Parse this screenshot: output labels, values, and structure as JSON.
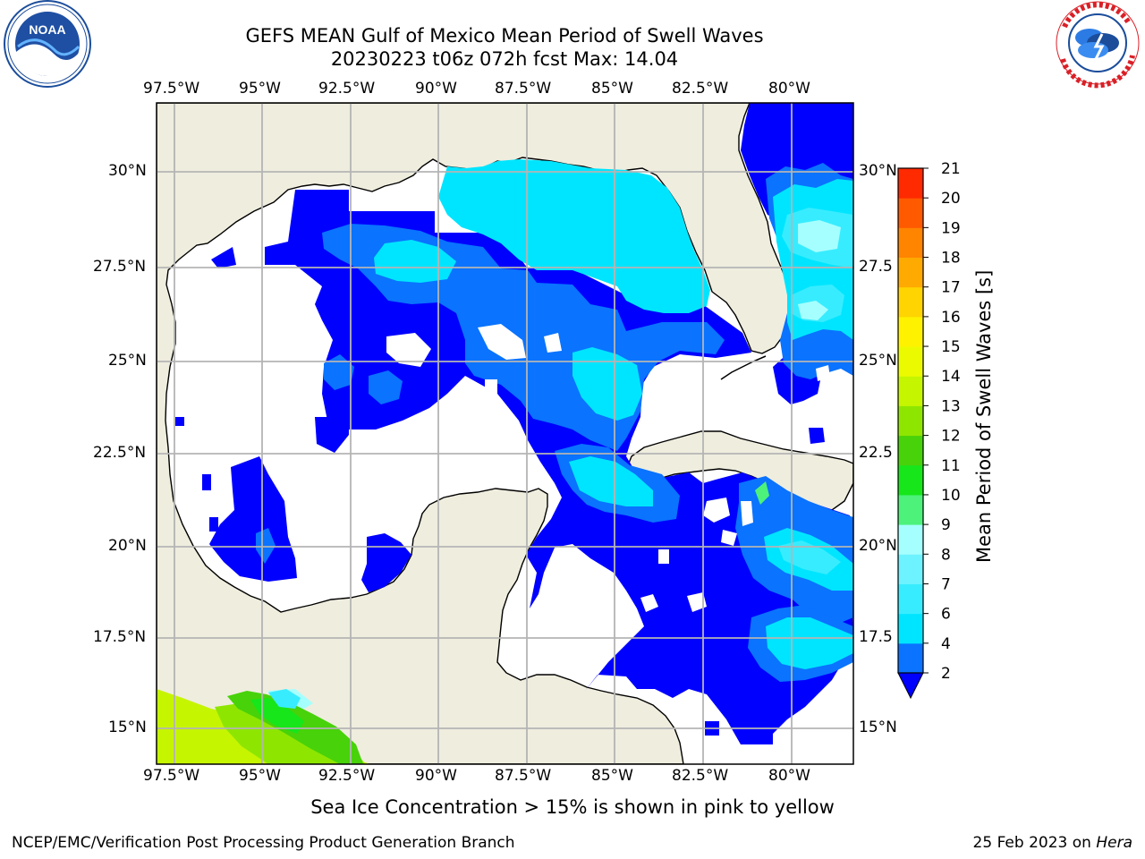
{
  "title": {
    "line1": "GEFS MEAN Gulf of Mexico Mean Period of Swell Waves",
    "line2": "20230223 t06z 072h fcst   Max: 14.04"
  },
  "logos": {
    "left": {
      "icon": "noaa-logo",
      "text": "NOAA"
    },
    "right": {
      "icon": "national-weather-service-logo",
      "text": "NATIONAL WEATHER SERVICE"
    }
  },
  "axes": {
    "lon_labels": [
      "97.5°W",
      "95°W",
      "92.5°W",
      "90°W",
      "87.5°W",
      "85°W",
      "82.5°W",
      "80°W"
    ],
    "lat_labels_left": [
      "30°N",
      "27.5°N",
      "25°N",
      "22.5°N",
      "20°N",
      "17.5°N",
      "15°N"
    ],
    "lat_labels_right": [
      "30°N",
      "27.5",
      "25°N",
      "22.5",
      "20°N",
      "17.5",
      "15°N"
    ]
  },
  "colorbar": {
    "label": "Mean Period of Swell Waves [s]",
    "ticks": [
      "2",
      "4",
      "6",
      "7",
      "8",
      "9",
      "10",
      "11",
      "12",
      "13",
      "14",
      "15",
      "16",
      "17",
      "18",
      "19",
      "20",
      "21"
    ],
    "colors": [
      "#0a73ff",
      "#00e5ff",
      "#38ecff",
      "#6cf3ff",
      "#a6ffff",
      "#4cf27a",
      "#16e61a",
      "#48d20a",
      "#8ee600",
      "#c6f500",
      "#ecfa00",
      "#fff200",
      "#ffd400",
      "#ffaa00",
      "#ff8400",
      "#ff5a00",
      "#ff2a00"
    ],
    "under_color": "#0000ff"
  },
  "caption": "Sea Ice Concentration > 15% is shown in pink to yellow",
  "footer": {
    "left": "NCEP/EMC/Verification Post Processing Product Generation Branch",
    "right_text": "25 Feb 2023 on ",
    "right_italic": "Hera"
  },
  "colors": {
    "land": "#efedde",
    "grid": "#b4b4b4",
    "swell_2_4": "#0000ff",
    "swell_4_6": "#0a73ff",
    "swell_6_7": "#00e5ff",
    "swell_7_8": "#38ecff",
    "swell_8_9": "#a6ffff",
    "swell_9_10": "#4cf27a",
    "swell_10_11": "#16e61a",
    "swell_12_13": "#c6f500"
  }
}
